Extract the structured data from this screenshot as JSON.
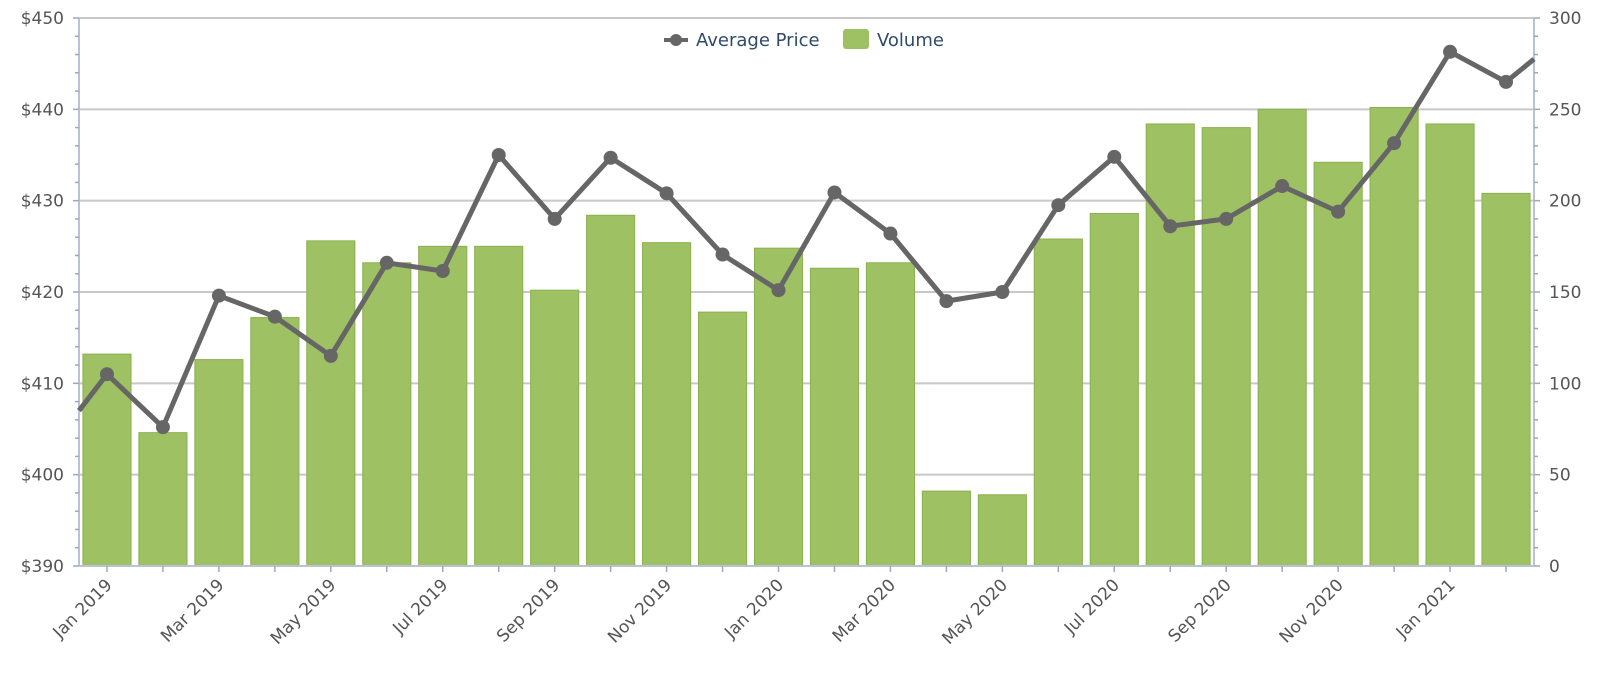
{
  "chart_data": {
    "type": "bar",
    "categories": [
      "Jan 2019",
      "Feb 2019",
      "Mar 2019",
      "Apr 2019",
      "May 2019",
      "Jun 2019",
      "Jul 2019",
      "Aug 2019",
      "Sep 2019",
      "Oct 2019",
      "Nov 2019",
      "Dec 2019",
      "Jan 2020",
      "Feb 2020",
      "Mar 2020",
      "Apr 2020",
      "May 2020",
      "Jun 2020",
      "Jul 2020",
      "Aug 2020",
      "Sep 2020",
      "Oct 2020",
      "Nov 2020",
      "Dec 2020",
      "Jan 2021",
      "Feb 2021"
    ],
    "x_tick_labels": [
      "Jan 2019",
      "Mar 2019",
      "May 2019",
      "Jul 2019",
      "Sep 2019",
      "Nov 2019",
      "Jan 2020",
      "Mar 2020",
      "May 2020",
      "Jul 2020",
      "Sep 2020",
      "Nov 2020",
      "Jan 2021"
    ],
    "series": [
      {
        "name": "Volume",
        "type": "bar",
        "axis": "right",
        "color": "#9dc163",
        "values": [
          116,
          73,
          113,
          136,
          178,
          166,
          175,
          175,
          151,
          192,
          177,
          139,
          174,
          163,
          166,
          41,
          39,
          179,
          193,
          242,
          240,
          250,
          221,
          251,
          242,
          204
        ]
      },
      {
        "name": "Average Price",
        "type": "line",
        "axis": "left",
        "color": "#666666",
        "values": [
          411,
          405.2,
          419.6,
          417.3,
          413,
          423.2,
          422.3,
          435,
          428,
          434.7,
          430.8,
          424.1,
          420.2,
          430.9,
          426.4,
          419,
          420,
          429.5,
          434.8,
          427.2,
          428,
          431.6,
          428.8,
          436.3,
          446.3,
          443
        ]
      }
    ],
    "line_start_partial": 407,
    "line_end_partial": 445.5,
    "left_axis": {
      "ylim": [
        390,
        450
      ],
      "ticks": [
        "$390",
        "$400",
        "$410",
        "$420",
        "$430",
        "$440",
        "$450"
      ]
    },
    "right_axis": {
      "ylim": [
        0,
        300
      ],
      "ticks": [
        "0",
        "50",
        "100",
        "150",
        "200",
        "250",
        "300"
      ]
    },
    "legend": {
      "placement": "top-center",
      "items": [
        "Average Price",
        "Volume"
      ]
    },
    "grid": true,
    "title": "",
    "xlabel": "",
    "ylabel": ""
  }
}
